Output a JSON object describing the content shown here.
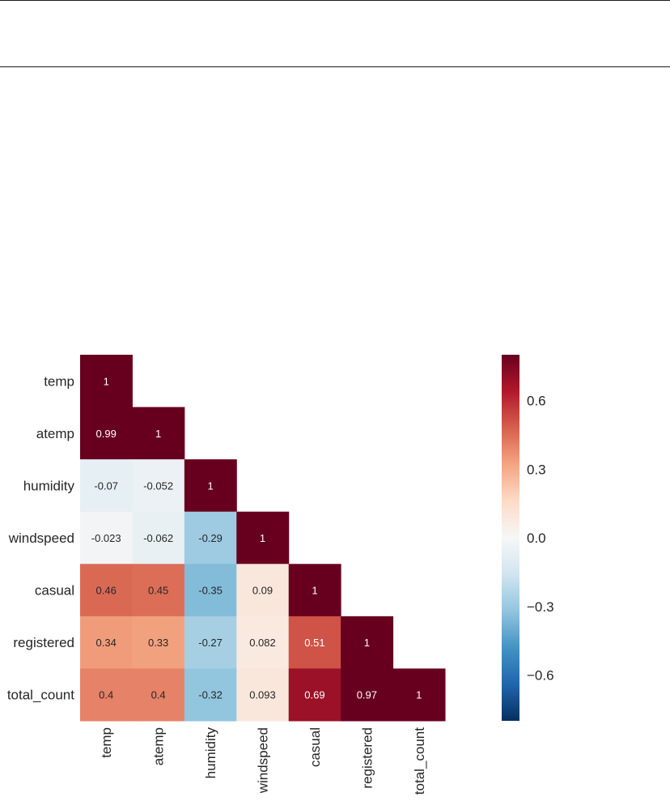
{
  "chart_data": {
    "type": "heatmap",
    "title": "",
    "xlabel": "",
    "ylabel": "",
    "mask": "upper-triangle (diagonal shown)",
    "variables": [
      "temp",
      "atemp",
      "humidity",
      "windspeed",
      "casual",
      "registered",
      "total_count"
    ],
    "matrix": [
      [
        1,
        null,
        null,
        null,
        null,
        null,
        null
      ],
      [
        0.99,
        1,
        null,
        null,
        null,
        null,
        null
      ],
      [
        -0.07,
        -0.052,
        1,
        null,
        null,
        null,
        null
      ],
      [
        -0.023,
        -0.062,
        -0.29,
        1,
        null,
        null,
        null
      ],
      [
        0.46,
        0.45,
        -0.35,
        0.09,
        1,
        null,
        null
      ],
      [
        0.34,
        0.33,
        -0.27,
        0.082,
        0.51,
        1,
        null
      ],
      [
        0.4,
        0.4,
        -0.32,
        0.093,
        0.69,
        0.97,
        1
      ]
    ],
    "annotations": [
      [
        "1"
      ],
      [
        "0.99",
        "1"
      ],
      [
        "-0.07",
        "-0.052",
        "1"
      ],
      [
        "-0.023",
        "-0.062",
        "-0.29",
        "1"
      ],
      [
        "0.46",
        "0.45",
        "-0.35",
        "0.09",
        "1"
      ],
      [
        "0.34",
        "0.33",
        "-0.27",
        "0.082",
        "0.51",
        "1"
      ],
      [
        "0.4",
        "0.4",
        "-0.32",
        "0.093",
        "0.69",
        "0.97",
        "1"
      ]
    ],
    "colormap": "RdBu_r",
    "vmin": -0.8,
    "vmax": 0.8,
    "colorbar": {
      "ticks": [
        0.6,
        0.3,
        0.0,
        -0.3,
        -0.6
      ],
      "tick_labels": [
        "0.6",
        "0.3",
        "0.0",
        "−0.3",
        "−0.6"
      ],
      "placement": "right"
    },
    "grid": false
  }
}
